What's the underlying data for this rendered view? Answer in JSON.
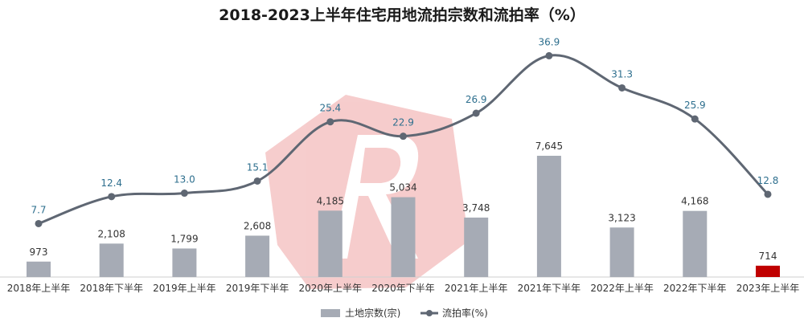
{
  "chart_data": {
    "type": "bar",
    "title": "2018-2023上半年住宅用地流拍宗数和流拍率（%）",
    "categories": [
      "2018年上半年",
      "2018年下半年",
      "2019年上半年",
      "2019年下半年",
      "2020年上半年",
      "2020年下半年",
      "2021年上半年",
      "2021年下半年",
      "2022年上半年",
      "2022年下半年",
      "2023年上半年"
    ],
    "series": [
      {
        "name": "土地宗数(宗)",
        "type": "bar",
        "values": [
          973,
          2108,
          1799,
          2608,
          4185,
          5034,
          3748,
          7645,
          3123,
          4168,
          714
        ],
        "labels": [
          "973",
          "2,108",
          "1,799",
          "2,608",
          "4,185",
          "5,034",
          "3,748",
          "7,645",
          "3,123",
          "4,168",
          "714"
        ],
        "color": "#a6abb5",
        "highlight_color": "#c00000",
        "highlight_index": 10
      },
      {
        "name": "流拍率(%)",
        "type": "line",
        "values": [
          7.7,
          12.4,
          13.0,
          15.1,
          25.4,
          22.9,
          26.9,
          36.9,
          31.3,
          25.9,
          12.8
        ],
        "labels": [
          "7.7",
          "12.4",
          "13.0",
          "15.1",
          "25.4",
          "22.9",
          "26.9",
          "36.9",
          "31.3",
          "25.9",
          "12.8"
        ],
        "color": "#5f6773"
      }
    ],
    "legend_position": "bottom",
    "grid": false
  }
}
